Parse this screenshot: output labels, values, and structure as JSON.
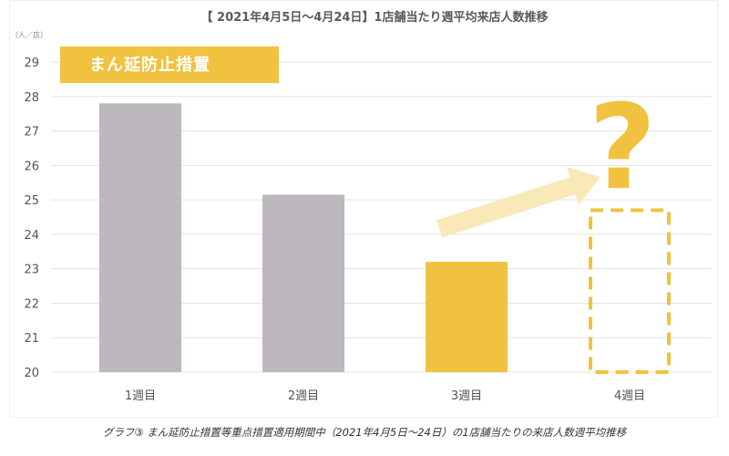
{
  "colors": {
    "gray_bar": "#bcb8bd",
    "yellow": "#f1c23f",
    "arrow": "#f9e9b9",
    "grid": "#e3e3e3",
    "text": "#555555"
  },
  "chart_data": {
    "type": "bar",
    "title": "【 2021年4月5日～4月24日】1店舗当たり週平均来店人数推移",
    "unit_label": "（人／店）",
    "ylim": [
      20,
      29
    ],
    "yticks": [
      20,
      21,
      22,
      23,
      24,
      25,
      26,
      27,
      28,
      29
    ],
    "grid": true,
    "categories": [
      "1週目",
      "2週目",
      "3週目",
      "4週目"
    ],
    "values": [
      27.8,
      25.15,
      23.2,
      null
    ],
    "bar_colors": [
      "gray",
      "gray",
      "yellow",
      "placeholder"
    ],
    "placeholder": {
      "category": "4週目",
      "style": "dashed-outline",
      "top_value": 24.7
    },
    "annotations": {
      "banner": "まん延防止措置",
      "question_mark": "?",
      "arrow": "upward trend arrow from 3週目 toward 4週目"
    }
  },
  "caption": "グラフ③ まん延防止措置等重点措置適用期間中（2021年4月5日〜24日）の1店舗当たりの来店人数週平均推移"
}
